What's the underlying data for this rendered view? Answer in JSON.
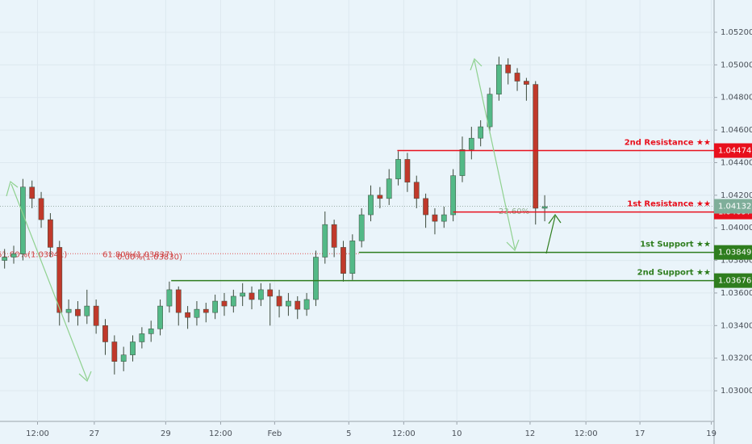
{
  "chart_data": {
    "type": "candlestick",
    "x": [
      0,
      1,
      2,
      3,
      4,
      5,
      6,
      7,
      8,
      9,
      10,
      11,
      12,
      13,
      14,
      15,
      16,
      17,
      18,
      19,
      20,
      21,
      22,
      23,
      24,
      25,
      26,
      27,
      28,
      29,
      30,
      31,
      32,
      33,
      34,
      35,
      36,
      37,
      38,
      39,
      40,
      41,
      42,
      43,
      44,
      45,
      46,
      47,
      48,
      49,
      50,
      51,
      52,
      53,
      54,
      55,
      56,
      57,
      58,
      59
    ],
    "open": [
      1.038,
      1.0382,
      1.0384,
      1.0425,
      1.0418,
      1.0405,
      1.0388,
      1.0348,
      1.035,
      1.0346,
      1.0352,
      1.034,
      1.033,
      1.0318,
      1.0322,
      1.033,
      1.0335,
      1.0338,
      1.0352,
      1.0362,
      1.0348,
      1.0345,
      1.035,
      1.0348,
      1.0355,
      1.0352,
      1.0358,
      1.036,
      1.0356,
      1.0362,
      1.0358,
      1.0352,
      1.0355,
      1.035,
      1.0356,
      1.0382,
      1.0402,
      1.0388,
      1.0372,
      1.0392,
      1.0408,
      1.042,
      1.0418,
      1.043,
      1.0442,
      1.0428,
      1.0418,
      1.0408,
      1.0404,
      1.0408,
      1.0432,
      1.0448,
      1.0455,
      1.0462,
      1.0482,
      1.05,
      1.0495,
      1.049,
      1.0488,
      1.0412
    ],
    "high": [
      1.0387,
      1.0389,
      1.043,
      1.0429,
      1.0422,
      1.0409,
      1.0392,
      1.0356,
      1.0355,
      1.0362,
      1.0356,
      1.0344,
      1.0334,
      1.0327,
      1.0334,
      1.0339,
      1.0343,
      1.0356,
      1.0367,
      1.0364,
      1.0352,
      1.0355,
      1.0354,
      1.0359,
      1.036,
      1.0362,
      1.0366,
      1.0364,
      1.0366,
      1.0366,
      1.0362,
      1.036,
      1.0358,
      1.036,
      1.0386,
      1.041,
      1.0405,
      1.0392,
      1.0396,
      1.0412,
      1.0426,
      1.0425,
      1.0436,
      1.0447,
      1.0446,
      1.0432,
      1.0421,
      1.0412,
      1.0413,
      1.0436,
      1.0456,
      1.0462,
      1.0466,
      1.0486,
      1.0505,
      1.0504,
      1.0498,
      1.0492,
      1.049,
      1.042
    ],
    "low": [
      1.0375,
      1.0378,
      1.038,
      1.0412,
      1.04,
      1.0382,
      1.034,
      1.0342,
      1.034,
      1.0341,
      1.0335,
      1.0322,
      1.031,
      1.0312,
      1.0318,
      1.0326,
      1.033,
      1.0334,
      1.0348,
      1.034,
      1.0338,
      1.034,
      1.0342,
      1.0344,
      1.0346,
      1.0348,
      1.0352,
      1.035,
      1.0352,
      1.034,
      1.0345,
      1.0346,
      1.0344,
      1.0346,
      1.0352,
      1.0378,
      1.0382,
      1.0367,
      1.0368,
      1.0388,
      1.0404,
      1.0412,
      1.0414,
      1.0426,
      1.0422,
      1.0412,
      1.04,
      1.0396,
      1.04,
      1.0404,
      1.0428,
      1.0442,
      1.045,
      1.0458,
      1.0478,
      1.0488,
      1.0484,
      1.0478,
      1.0402,
      1.0404
    ],
    "close": [
      1.0382,
      1.0384,
      1.0425,
      1.0418,
      1.0405,
      1.0388,
      1.0348,
      1.035,
      1.0346,
      1.0352,
      1.034,
      1.033,
      1.0318,
      1.0322,
      1.033,
      1.0335,
      1.0338,
      1.0352,
      1.0362,
      1.0348,
      1.0345,
      1.035,
      1.0348,
      1.0355,
      1.0352,
      1.0358,
      1.036,
      1.0356,
      1.0362,
      1.0358,
      1.0352,
      1.0355,
      1.035,
      1.0356,
      1.0382,
      1.0402,
      1.0388,
      1.0372,
      1.0392,
      1.0408,
      1.042,
      1.0418,
      1.043,
      1.0442,
      1.0428,
      1.0418,
      1.0408,
      1.0404,
      1.0408,
      1.0432,
      1.0448,
      1.0455,
      1.0462,
      1.0482,
      1.05,
      1.0495,
      1.049,
      1.0488,
      1.0412,
      1.0413
    ],
    "up_color": "#53b987",
    "down_color": "#c0392b",
    "xlim": [
      -0.5,
      77.5
    ],
    "xticks": [
      {
        "value": 3.6,
        "label": "12:00"
      },
      {
        "value": 9.8,
        "label": "27"
      },
      {
        "value": 17.6,
        "label": "29"
      },
      {
        "value": 23.6,
        "label": "12:00"
      },
      {
        "value": 29.5,
        "label": "Feb"
      },
      {
        "value": 37.6,
        "label": "5"
      },
      {
        "value": 43.6,
        "label": "12:00"
      },
      {
        "value": 49.4,
        "label": "10"
      },
      {
        "value": 57.4,
        "label": "12"
      },
      {
        "value": 63.5,
        "label": "12:00"
      },
      {
        "value": 69.4,
        "label": "17"
      },
      {
        "value": 77.2,
        "label": "19"
      }
    ],
    "ylim": [
      1.02812,
      1.05398
    ],
    "yticks": [
      {
        "value": 1.03,
        "label": "1.03000"
      },
      {
        "value": 1.032,
        "label": "1.03200"
      },
      {
        "value": 1.034,
        "label": "1.03400"
      },
      {
        "value": 1.036,
        "label": "1.03600"
      },
      {
        "value": 1.038,
        "label": "1.03800"
      },
      {
        "value": 1.04,
        "label": "1.04000"
      },
      {
        "value": 1.042,
        "label": "1.04200"
      },
      {
        "value": 1.044,
        "label": "1.04400"
      },
      {
        "value": 1.046,
        "label": "1.04600"
      },
      {
        "value": 1.048,
        "label": "1.04800"
      },
      {
        "value": 1.05,
        "label": "1.05000"
      },
      {
        "value": 1.052,
        "label": "1.05200"
      }
    ],
    "grid": true,
    "levels": [
      {
        "label": "2nd Resistance ★★",
        "value": 1.04474,
        "start": 42.9,
        "color": "#e8101d"
      },
      {
        "label": "1st Resistance ★★",
        "value": 1.04097,
        "start": 49,
        "color": "#e8101d"
      },
      {
        "label": "1st Support ★★",
        "value": 1.03849,
        "start": 38.7,
        "color": "#2e7d1e"
      },
      {
        "label": "2nd Support ★★",
        "value": 1.03676,
        "start": 18.2,
        "color": "#2e7d1e"
      }
    ],
    "last_price": 1.04132,
    "fib": {
      "value": 1.03841,
      "labels": [
        "61.80%(1.03841)",
        "61.80%(1.03837)",
        "0.00%(1.03830)"
      ]
    },
    "fib_note": "23.60%"
  }
}
